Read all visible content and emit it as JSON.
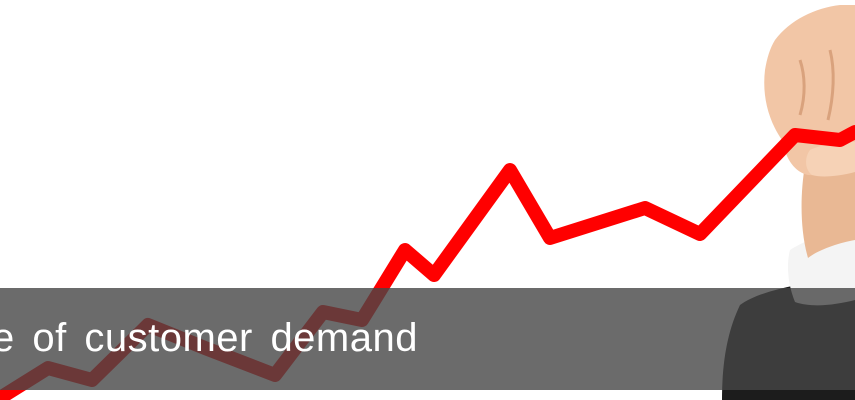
{
  "caption": {
    "text": "e of customer demand"
  },
  "colors": {
    "trend_line": "#ff0000",
    "caption_band": "#464646",
    "caption_text": "#ffffff",
    "skin": "#f2c6a6",
    "jacket": "#1c1c1c",
    "shirt": "#f4f4f4"
  },
  "icons": {
    "hand": "hand-drawing-image",
    "line": "rising-trend-line"
  }
}
